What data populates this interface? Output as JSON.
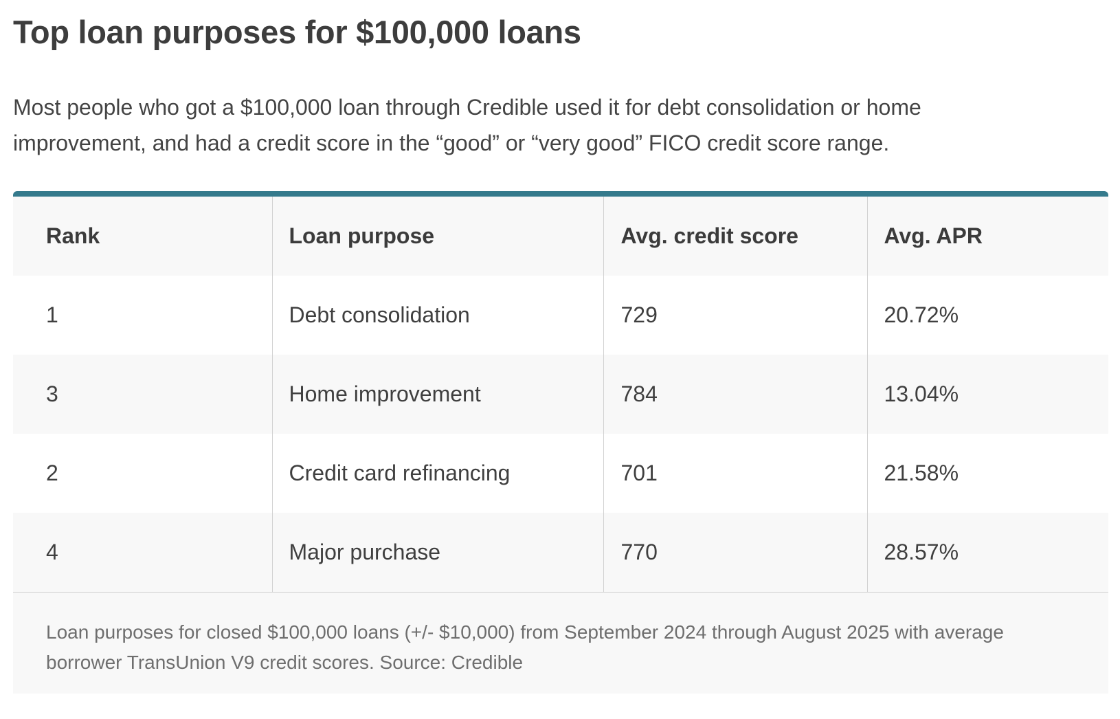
{
  "title": "Top loan purposes for $100,000 loans",
  "intro": "Most people who got a $100,000 loan through Credible used it for debt consolidation or home improvement, and had a credit score in the “good” or “very good” FICO credit score range.",
  "table": {
    "headers": [
      "Rank",
      "Loan purpose",
      "Avg. credit score",
      "Avg. APR"
    ],
    "rows": [
      [
        "1",
        "Debt consolidation",
        "729",
        "20.72%"
      ],
      [
        "3",
        "Home improvement",
        "784",
        "13.04%"
      ],
      [
        "2",
        "Credit card refinancing",
        "701",
        "21.58%"
      ],
      [
        "4",
        "Major purchase",
        "770",
        "28.57%"
      ]
    ],
    "footnote": "Loan purposes for closed $100,000 loans (+/- $10,000) from September 2024 through August 2025 with average borrower TransUnion V9 credit scores. Source: Credible"
  },
  "colors": {
    "accent_bar": "#357a8c",
    "header_background": "#f8f8f8"
  }
}
